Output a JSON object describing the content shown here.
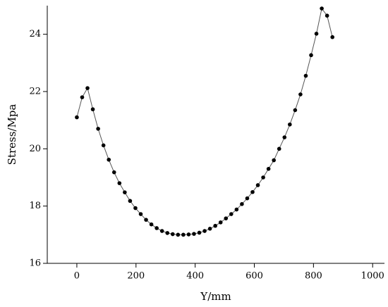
{
  "chart_data": {
    "type": "line",
    "x_label": "Y/mm",
    "y_label": "Stress/Mpa",
    "series": [
      {
        "color": "#000000",
        "x": [
          0,
          18,
          36,
          54,
          72,
          90,
          108,
          126,
          144,
          162,
          180,
          198,
          216,
          234,
          252,
          270,
          288,
          306,
          324,
          342,
          360,
          378,
          396,
          414,
          432,
          450,
          468,
          486,
          504,
          522,
          540,
          558,
          576,
          594,
          612,
          630,
          648,
          666,
          684,
          702,
          720,
          738,
          756,
          774,
          792,
          810,
          828,
          846,
          864
        ],
        "values": [
          21.1,
          21.8,
          22.12,
          21.38,
          20.7,
          20.12,
          19.62,
          19.18,
          18.8,
          18.48,
          18.18,
          17.93,
          17.72,
          17.52,
          17.36,
          17.23,
          17.13,
          17.06,
          17.02,
          17.0,
          17.0,
          17.01,
          17.03,
          17.07,
          17.13,
          17.21,
          17.31,
          17.43,
          17.57,
          17.72,
          17.88,
          18.07,
          18.27,
          18.49,
          18.73,
          19.0,
          19.3,
          19.6,
          20.0,
          20.4,
          20.85,
          21.35,
          21.9,
          22.55,
          23.27,
          24.02,
          24.9,
          24.65,
          23.9
        ]
      }
    ],
    "xlim": [
      -100,
      1040
    ],
    "xticks": [
      0,
      200,
      400,
      600,
      800,
      1000
    ],
    "ylim": [
      16,
      25
    ],
    "yticks": [
      16,
      18,
      20,
      22,
      24
    ]
  }
}
